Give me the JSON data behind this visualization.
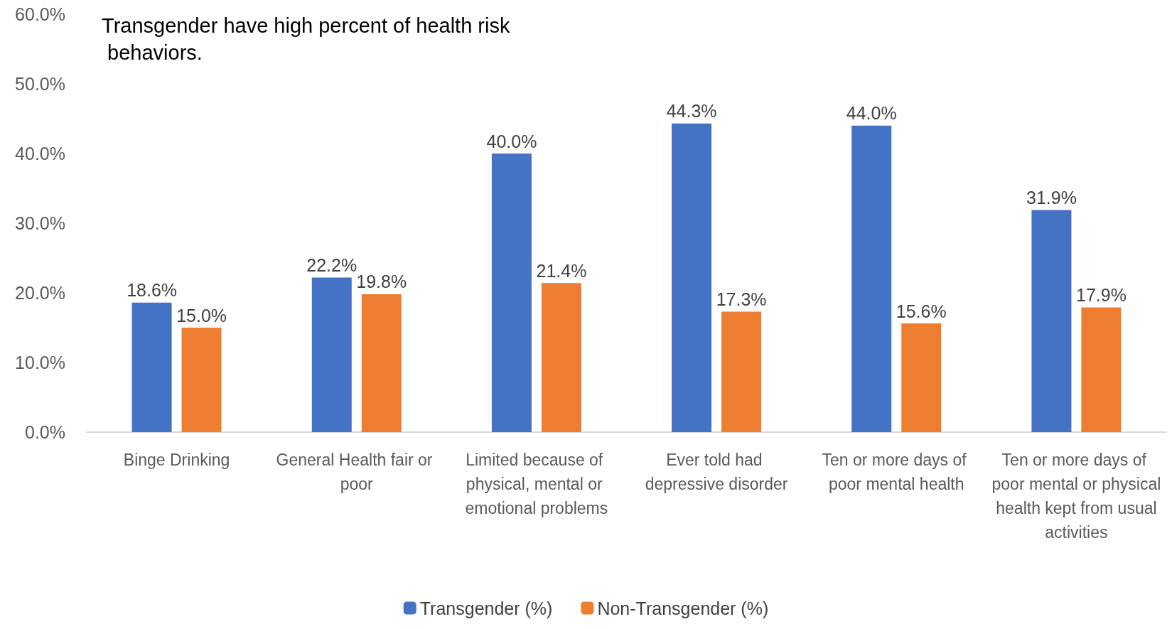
{
  "chart_data": {
    "type": "bar",
    "title": "Transgender have high percent of health risk behaviors.",
    "categories": [
      "Binge Drinking",
      "General Health fair or poor",
      "Limited because of physical, mental or emotional problems",
      "Ever told had depressive disorder",
      "Ten or more days of poor mental health",
      "Ten or more days of poor mental or physical health kept from usual activities"
    ],
    "series": [
      {
        "name": "Transgender (%)",
        "color": "#4472c4",
        "values": [
          18.6,
          22.2,
          40.0,
          44.3,
          44.0,
          31.9
        ],
        "value_labels": [
          "18.6%",
          "22.2%",
          "40.0%",
          "44.3%",
          "44.0%",
          "31.9%"
        ]
      },
      {
        "name": "Non-Transgender (%)",
        "color": "#ed7d31",
        "values": [
          15.0,
          19.8,
          21.4,
          17.3,
          15.6,
          17.9
        ],
        "value_labels": [
          "15.0%",
          "19.8%",
          "21.4%",
          "17.3%",
          "15.6%",
          "17.9%"
        ]
      }
    ],
    "ylim": [
      0,
      60
    ],
    "yticks": [
      {
        "value": 0,
        "label": "0.0%"
      },
      {
        "value": 10,
        "label": "10.0%"
      },
      {
        "value": 20,
        "label": "20.0%"
      },
      {
        "value": 30,
        "label": "30.0%"
      },
      {
        "value": 40,
        "label": "40.0%"
      },
      {
        "value": 50,
        "label": "50.0%"
      },
      {
        "value": 60,
        "label": "60.0%"
      }
    ],
    "grid": false,
    "legend": "bottom"
  }
}
